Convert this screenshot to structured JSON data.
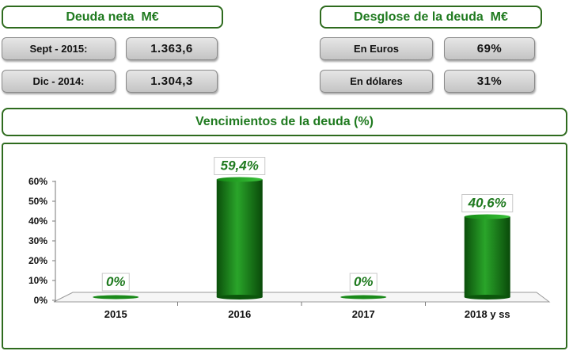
{
  "net_debt": {
    "title": "Deuda neta  M€",
    "rows": [
      {
        "label": "Sept - 2015:",
        "value": "1.363,6"
      },
      {
        "label": "Dic - 2014:",
        "value": "1.304,3"
      }
    ]
  },
  "breakdown": {
    "title": "Desglose de la deuda  M€",
    "rows": [
      {
        "label": "En Euros",
        "value": "69%"
      },
      {
        "label": "En dólares",
        "value": "31%"
      }
    ]
  },
  "colors": {
    "accent": "#1f7a1f",
    "border": "#2e6b1e",
    "bar": "#1a8a1a"
  },
  "chart_data": {
    "type": "bar",
    "title": "Vencimientos de la deuda (%)",
    "categories": [
      "2015",
      "2016",
      "2017",
      "2018 y ss"
    ],
    "values": [
      0,
      59.4,
      0,
      40.6
    ],
    "data_labels": [
      "0%",
      "59,4%",
      "0%",
      "40,6%"
    ],
    "yticks": [
      "0%",
      "10%",
      "20%",
      "30%",
      "40%",
      "50%",
      "60%"
    ],
    "ylim": [
      0,
      60
    ],
    "grid": false,
    "legend": "none"
  }
}
